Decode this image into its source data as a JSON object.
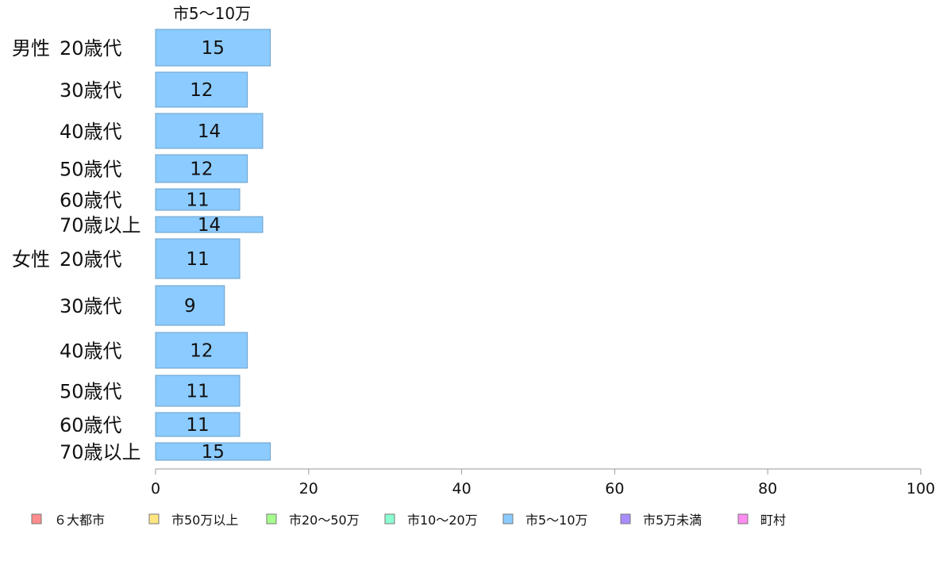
{
  "chart_data": {
    "type": "bar",
    "orientation": "horizontal",
    "series_title": "市5〜10万",
    "groups": [
      {
        "label": "男性",
        "categories": [
          "20歳代",
          "30歳代",
          "40歳代",
          "50歳代",
          "60歳代",
          "70歳以上"
        ],
        "values": [
          15,
          12,
          14,
          12,
          11,
          14
        ]
      },
      {
        "label": "女性",
        "categories": [
          "20歳代",
          "30歳代",
          "40歳代",
          "50歳代",
          "60歳代",
          "70歳以上"
        ],
        "values": [
          11,
          9,
          12,
          11,
          11,
          15
        ]
      }
    ],
    "xlim": [
      0,
      100
    ],
    "xticks": [
      0,
      20,
      40,
      60,
      80,
      100
    ],
    "grid": false,
    "legend_position": "bottom",
    "legend": [
      {
        "label": "６大都市",
        "color": "#ff8c8c"
      },
      {
        "label": "市50万以上",
        "color": "#ffe680"
      },
      {
        "label": "市20〜50万",
        "color": "#a6ff8c"
      },
      {
        "label": "市10〜20万",
        "color": "#8cffd0"
      },
      {
        "label": "市5〜10万",
        "color": "#8ccbff"
      },
      {
        "label": "市5万未満",
        "color": "#a98cff"
      },
      {
        "label": "町村",
        "color": "#ff8cf0"
      }
    ]
  }
}
